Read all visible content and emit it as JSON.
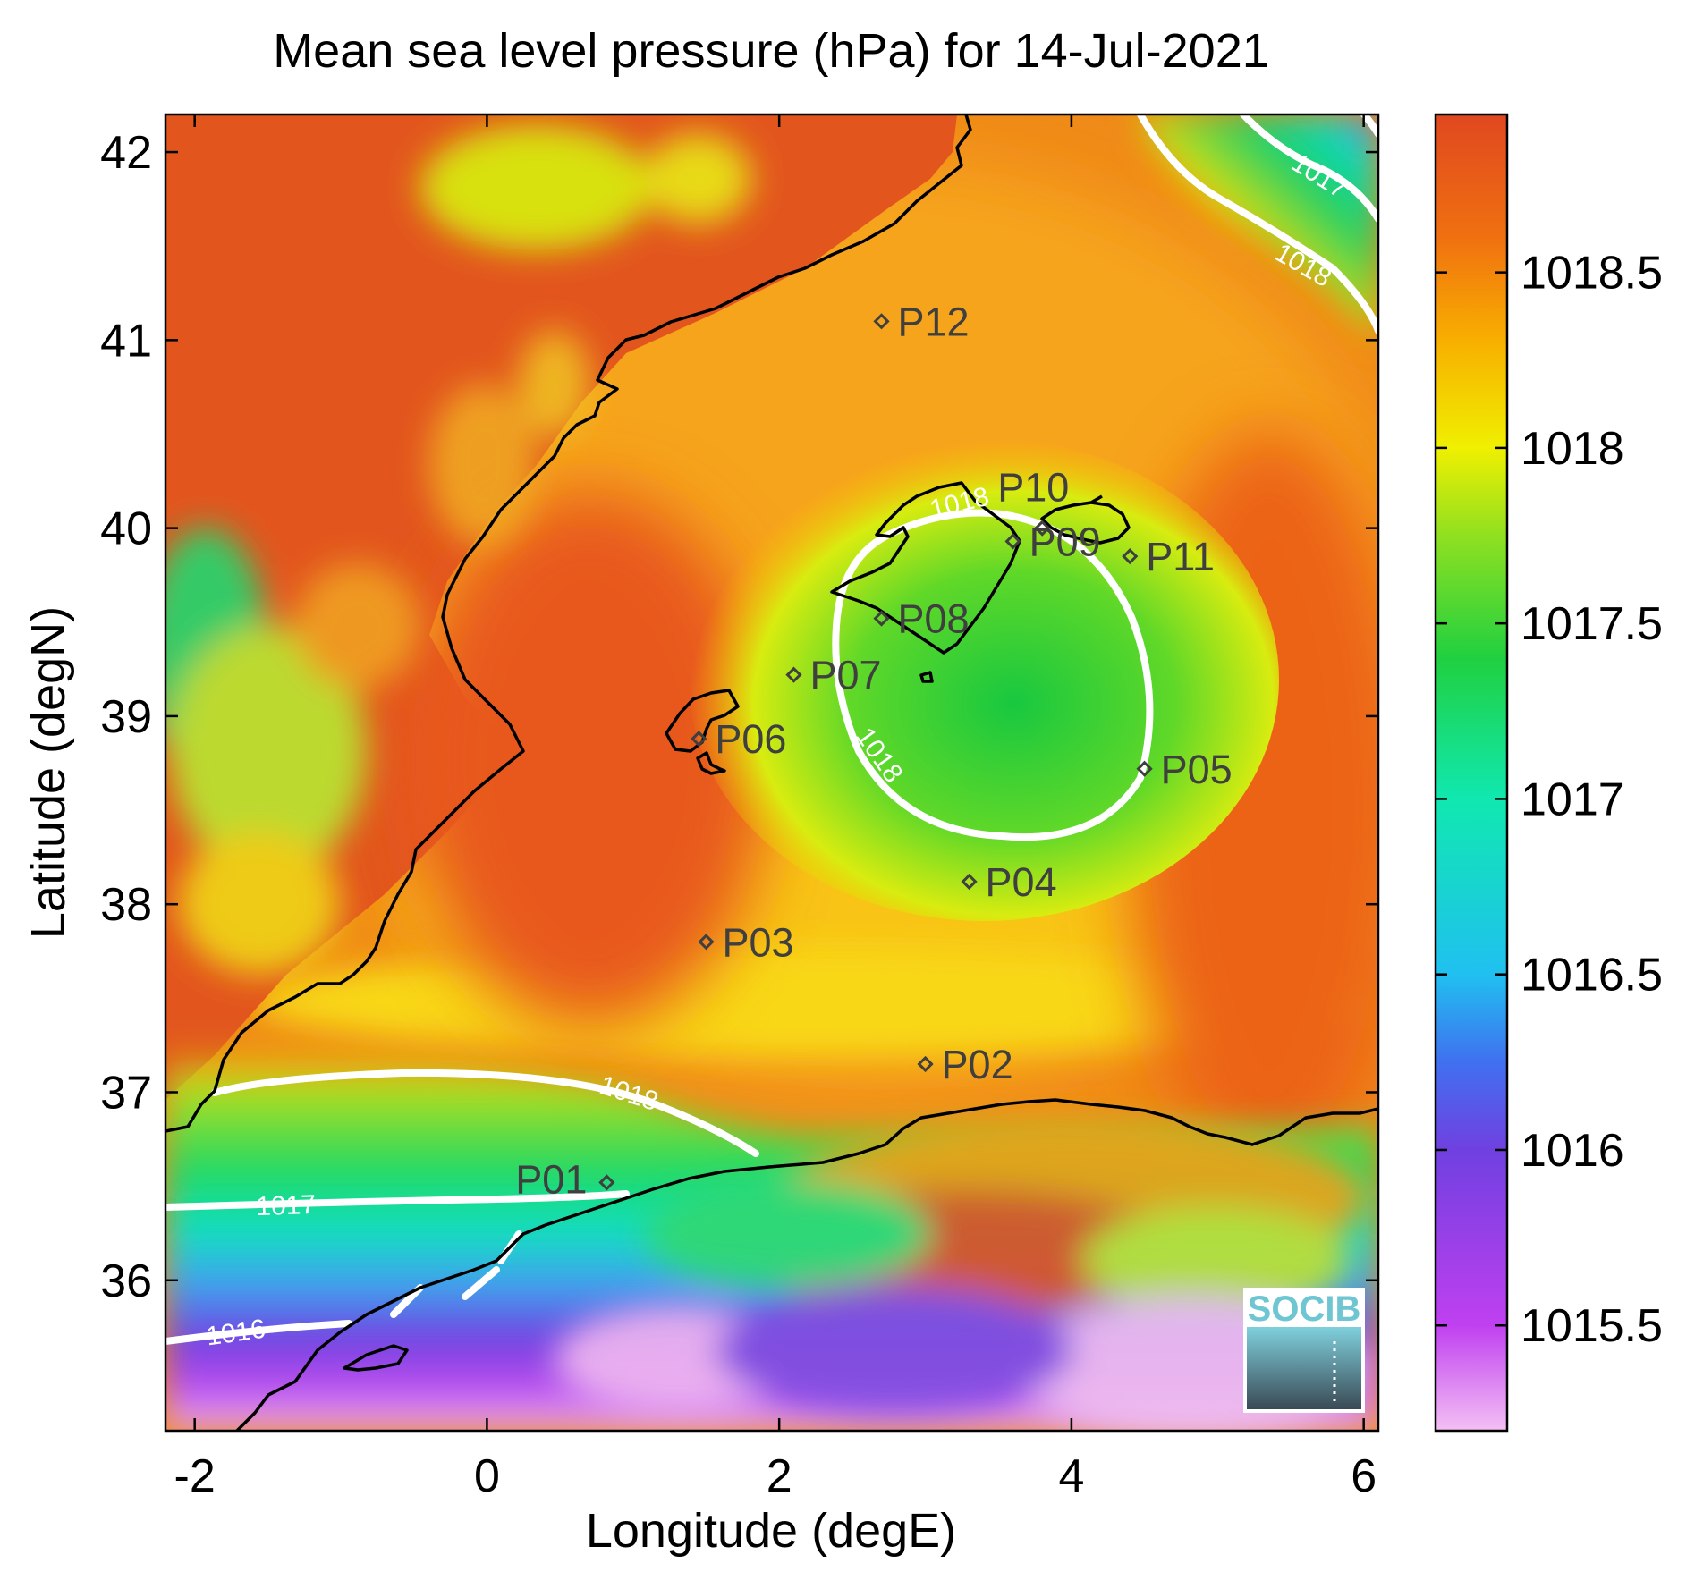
{
  "title": "Mean sea level pressure (hPa) for 14-Jul-2021",
  "chart_data": {
    "type": "heatmap",
    "title": "Mean sea level pressure (hPa) for 14-Jul-2021",
    "xlabel": "Longitude (degE)",
    "ylabel": "Latitude (degN)",
    "xlim": [
      -2.2,
      6.1
    ],
    "ylim": [
      35.2,
      42.2
    ],
    "x_ticks": [
      -2,
      0,
      2,
      4,
      6
    ],
    "y_ticks": [
      36,
      37,
      38,
      39,
      40,
      41,
      42
    ],
    "colorbar": {
      "range": [
        1015.2,
        1018.95
      ],
      "ticks": [
        1015.5,
        1016,
        1016.5,
        1017,
        1017.5,
        1018,
        1018.5
      ],
      "colors": {
        "1015.2": "#f4c0f4",
        "1015.5": "#c040f0",
        "1016.0": "#7040e0",
        "1016.25": "#4070f0",
        "1016.5": "#20c0f0",
        "1017.0": "#10e8b0",
        "1017.4": "#20d040",
        "1017.75": "#90e020",
        "1018.0": "#f0f000",
        "1018.3": "#f8b000",
        "1018.6": "#f07010",
        "1018.95": "#e04820"
      }
    },
    "contours": [
      {
        "level": "1016",
        "labels": [
          "1016"
        ]
      },
      {
        "level": "1017",
        "labels": [
          "1017",
          "1017"
        ]
      },
      {
        "level": "1018",
        "labels": [
          "1018",
          "1018",
          "1018",
          "1018"
        ]
      }
    ],
    "stations": [
      {
        "name": "P01",
        "lon": 0.82,
        "lat": 36.52
      },
      {
        "name": "P02",
        "lon": 3.0,
        "lat": 37.15
      },
      {
        "name": "P03",
        "lon": 1.5,
        "lat": 37.8
      },
      {
        "name": "P04",
        "lon": 3.3,
        "lat": 38.12
      },
      {
        "name": "P05",
        "lon": 4.5,
        "lat": 38.72
      },
      {
        "name": "P06",
        "lon": 1.45,
        "lat": 38.88
      },
      {
        "name": "P07",
        "lon": 2.1,
        "lat": 39.22
      },
      {
        "name": "P08",
        "lon": 2.7,
        "lat": 39.52
      },
      {
        "name": "P09",
        "lon": 3.6,
        "lat": 39.93
      },
      {
        "name": "P10",
        "lon": 3.8,
        "lat": 40.0
      },
      {
        "name": "P11",
        "lon": 4.4,
        "lat": 39.85
      },
      {
        "name": "P12",
        "lon": 2.7,
        "lat": 41.1
      }
    ],
    "grid": false,
    "legend": "colorbar-right"
  },
  "logo": {
    "text": "SOCIB"
  }
}
